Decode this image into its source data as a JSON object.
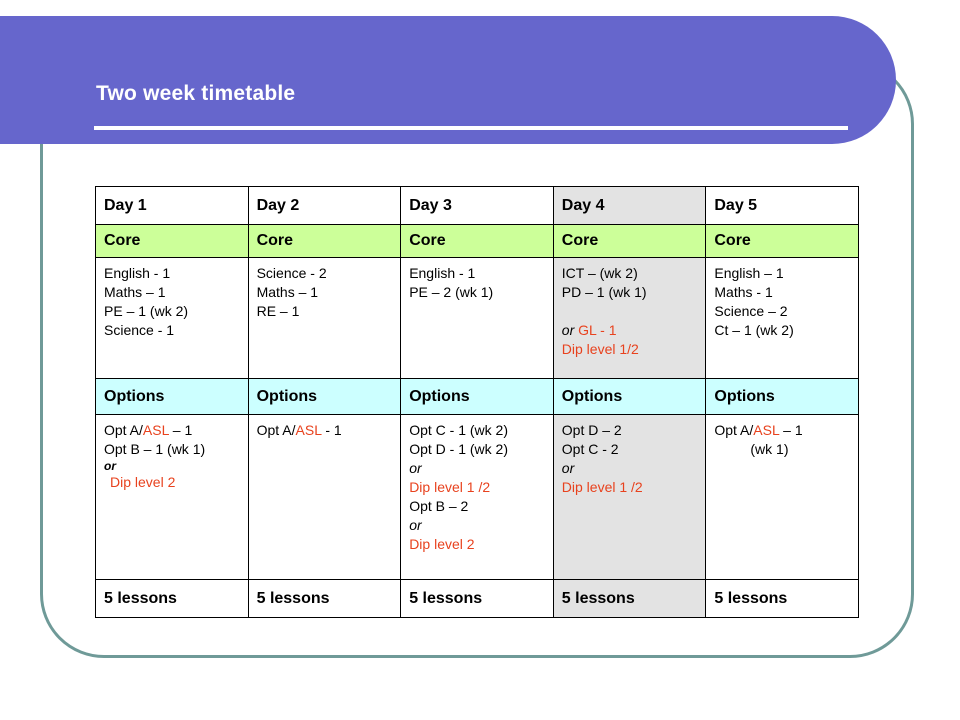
{
  "title": "Two week timetable",
  "days": [
    "Day 1",
    "Day 2",
    "Day 3",
    "Day 4",
    "Day 5"
  ],
  "core_label": "Core",
  "options_label": "Options",
  "core": [
    [
      "English - 1",
      "Maths – 1",
      "PE – 1 (wk 2)",
      "Science  - 1"
    ],
    [
      "Science - 2",
      "Maths – 1",
      "RE – 1"
    ],
    [
      "English - 1",
      "PE – 2 (wk 1)"
    ],
    {
      "lines": [
        "ICT – (wk 2)",
        "PD – 1 (wk 1)"
      ],
      "alt_or": "or",
      "alt_gl": "GL - 1",
      "alt_dip": "Dip level 1/2"
    },
    [
      "English – 1",
      "Maths - 1",
      "Science – 2",
      "Ct – 1 (wk 2)"
    ]
  ],
  "options": {
    "d1": {
      "l1_pre": "Opt A/",
      "l1_asl": "ASL",
      "l1_post": " – 1",
      "l2": "Opt B – 1 (wk 1)",
      "or": "or",
      "dip": "Dip level 2"
    },
    "d2": {
      "l1_pre": "Opt A/",
      "l1_asl": "ASL",
      "l1_post": " - 1"
    },
    "d3": {
      "l1": "Opt C  - 1 (wk 2)",
      "l2": "Opt D  - 1 (wk 2)",
      "or1": "or",
      "dip1": "Dip level 1 /2",
      "l3": "Opt B – 2",
      "or2": "or",
      "dip2": "Dip level 2"
    },
    "d4": {
      "l1": "Opt D – 2",
      "l2": "Opt C  - 2",
      "or": "or",
      "dip": "Dip level 1 /2"
    },
    "d5": {
      "l1_pre": "Opt A/",
      "l1_asl": "ASL",
      "l1_post": " – 1",
      "l2": "(wk 1)"
    }
  },
  "footer": [
    "5 lessons",
    "5 lessons",
    "5 lessons",
    "5 lessons",
    "5 lessons"
  ]
}
